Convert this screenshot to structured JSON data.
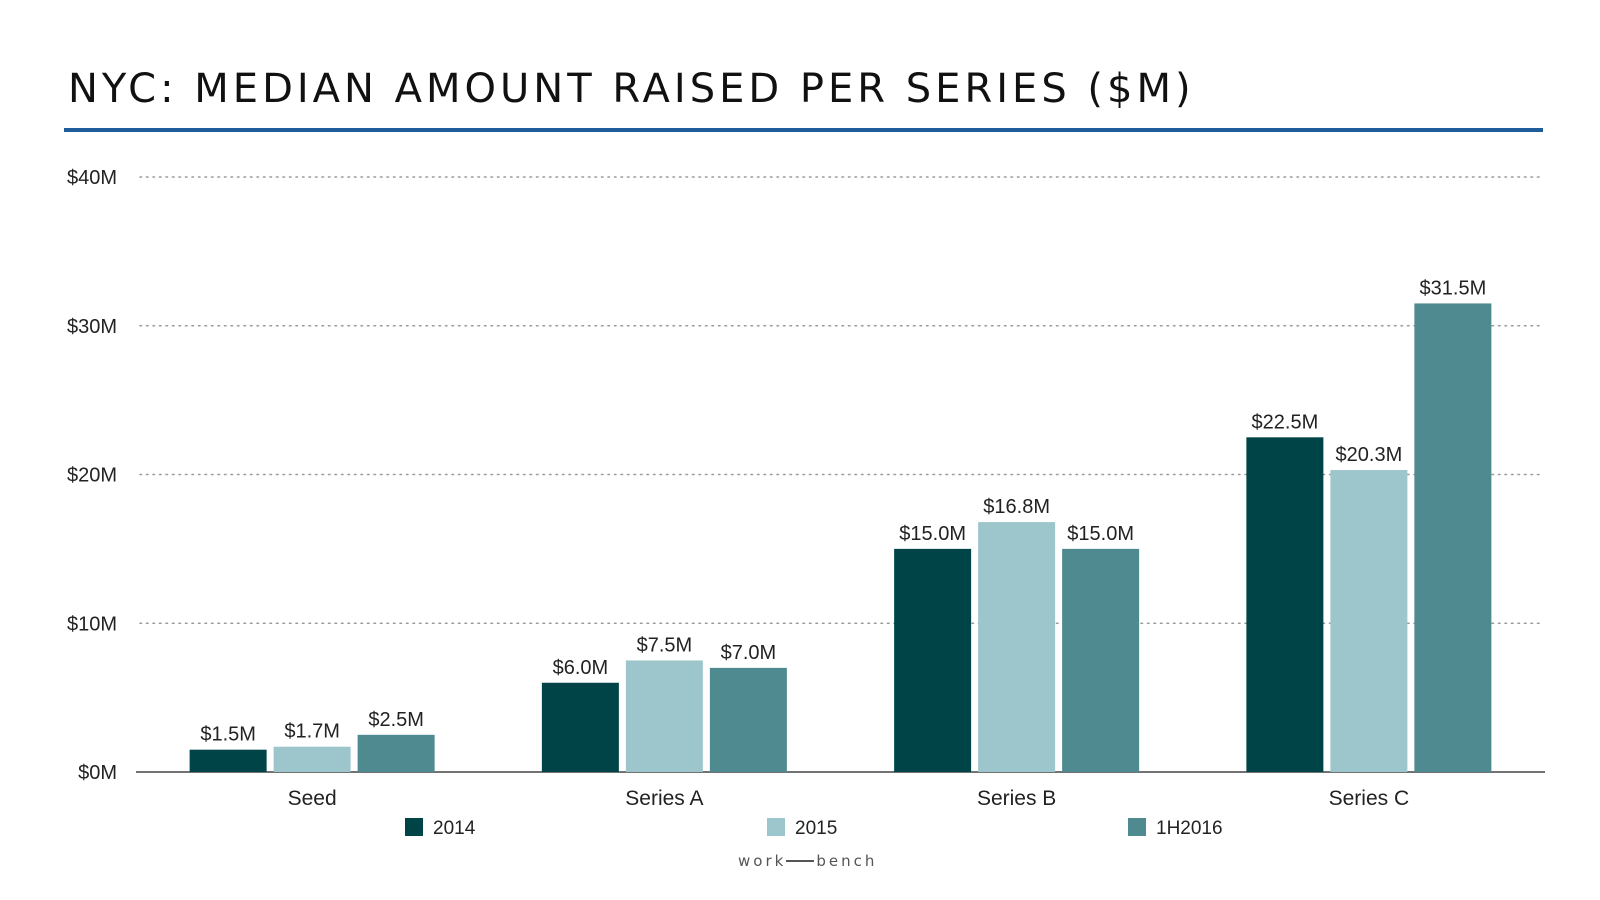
{
  "chart_data": {
    "type": "bar",
    "title": "NYC: MEDIAN AMOUNT RAISED PER SERIES ($M)",
    "categories": [
      "Seed",
      "Series A",
      "Series B",
      "Series C"
    ],
    "series": [
      {
        "name": "2014",
        "color": "#004448",
        "values": [
          1.5,
          6.0,
          15.0,
          22.5
        ],
        "labels": [
          "$1.5M",
          "$6.0M",
          "$15.0M",
          "$22.5M"
        ]
      },
      {
        "name": "2015",
        "color": "#9dc6cc",
        "values": [
          1.7,
          7.5,
          16.8,
          20.3
        ],
        "labels": [
          "$1.7M",
          "$7.5M",
          "$16.8M",
          "$20.3M"
        ]
      },
      {
        "name": "1H2016",
        "color": "#4f8a90",
        "values": [
          2.5,
          7.0,
          15.0,
          31.5
        ],
        "labels": [
          "$2.5M",
          "$7.0M",
          "$15.0M",
          "$31.5M"
        ]
      }
    ],
    "ylim": [
      0,
      40
    ],
    "yticks": [
      0,
      10,
      20,
      30,
      40
    ],
    "ytick_labels": [
      "$0M",
      "$10M",
      "$20M",
      "$30M",
      "$40M"
    ],
    "grid": "horizontal dotted",
    "legend_position": "bottom",
    "xlabel": "",
    "ylabel": ""
  },
  "branding": {
    "left": "work",
    "right": "bench"
  }
}
